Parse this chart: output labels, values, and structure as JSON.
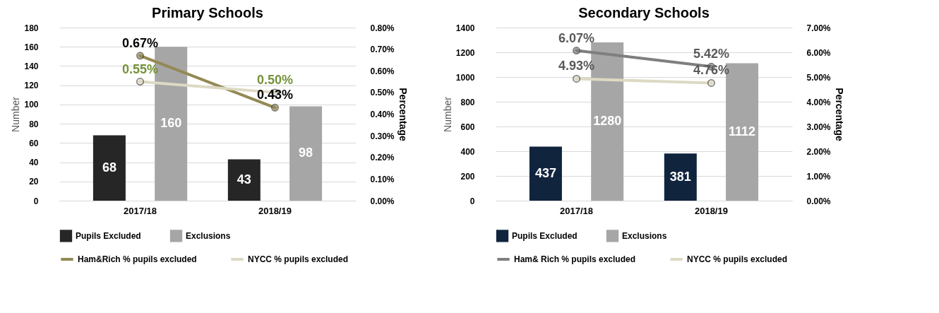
{
  "chart_data": [
    {
      "type": "bar",
      "title": "Primary Schools",
      "categories": [
        "2017/18",
        "2018/19"
      ],
      "ylabel": "Number",
      "y2label": "Percentage",
      "ylim": [
        0,
        180
      ],
      "yticks": [
        0,
        20,
        40,
        60,
        80,
        100,
        120,
        140,
        160,
        180
      ],
      "y2lim": [
        0,
        0.8
      ],
      "y2ticks": [
        {
          "value": 0,
          "label": "0.00%"
        },
        {
          "value": 0.1,
          "label": "0.10%"
        },
        {
          "value": 0.2,
          "label": "0.20%"
        },
        {
          "value": 0.3,
          "label": "0.30%"
        },
        {
          "value": 0.4,
          "label": "0.40%"
        },
        {
          "value": 0.5,
          "label": "0.50%"
        },
        {
          "value": 0.6,
          "label": "0.60%"
        },
        {
          "value": 0.7,
          "label": "0.70%"
        },
        {
          "value": 0.8,
          "label": "0.80%"
        }
      ],
      "grid": "y",
      "legend": "bottom",
      "marker": "circle",
      "series": [
        {
          "name": "Pupils Excluded",
          "color": "#262626",
          "values": [
            68,
            43
          ],
          "value_labels": [
            "68",
            "43"
          ]
        },
        {
          "name": "Exclusions",
          "color": "#a6a6a6",
          "values": [
            160,
            98
          ],
          "value_labels": [
            "160",
            "98"
          ]
        },
        {
          "name": "Ham&Rich % pupils excluded",
          "type": "line",
          "axis": "y2",
          "color": "#938953",
          "values": [
            0.67,
            0.43
          ],
          "value_labels": [
            "0.67%",
            "0.43%"
          ]
        },
        {
          "name": "NYCC % pupils excluded",
          "type": "line",
          "axis": "y2",
          "color": "#ddd9c3",
          "values": [
            0.55,
            0.5
          ],
          "value_labels": [
            "0.55%",
            "0.50%"
          ]
        }
      ]
    },
    {
      "type": "bar",
      "title": "Secondary Schools",
      "categories": [
        "2017/18",
        "2018/19"
      ],
      "ylabel": "Number",
      "y2label": "Percentage",
      "ylim": [
        0,
        1400
      ],
      "yticks": [
        0,
        200,
        400,
        600,
        800,
        1000,
        1200,
        1400
      ],
      "y2lim": [
        0,
        7
      ],
      "y2ticks": [
        {
          "value": 0,
          "label": "0.00%"
        },
        {
          "value": 1,
          "label": "1.00%"
        },
        {
          "value": 2,
          "label": "2.00%"
        },
        {
          "value": 3,
          "label": "3.00%"
        },
        {
          "value": 4,
          "label": "4.00%"
        },
        {
          "value": 5,
          "label": "5.00%"
        },
        {
          "value": 6,
          "label": "6.00%"
        },
        {
          "value": 7,
          "label": "7.00%"
        }
      ],
      "grid": "y",
      "legend": "bottom",
      "marker": "circle",
      "series": [
        {
          "name": "Pupils Excluded",
          "color": "#10243e",
          "values": [
            437,
            381
          ],
          "value_labels": [
            "437",
            "381"
          ]
        },
        {
          "name": "Exclusions",
          "color": "#a6a6a6",
          "values": [
            1280,
            1112
          ],
          "value_labels": [
            "1280",
            "1112"
          ]
        },
        {
          "name": "Ham& Rich % pupils excluded",
          "type": "line",
          "axis": "y2",
          "color": "#7f7f7f",
          "values": [
            6.07,
            5.42
          ],
          "value_labels": [
            "6.07%",
            "5.42%"
          ]
        },
        {
          "name": "NYCC % pupils excluded",
          "type": "line",
          "axis": "y2",
          "color": "#ddd9c3",
          "values": [
            4.93,
            4.76
          ],
          "value_labels": [
            "4.93%",
            "4.76%"
          ]
        }
      ]
    }
  ]
}
